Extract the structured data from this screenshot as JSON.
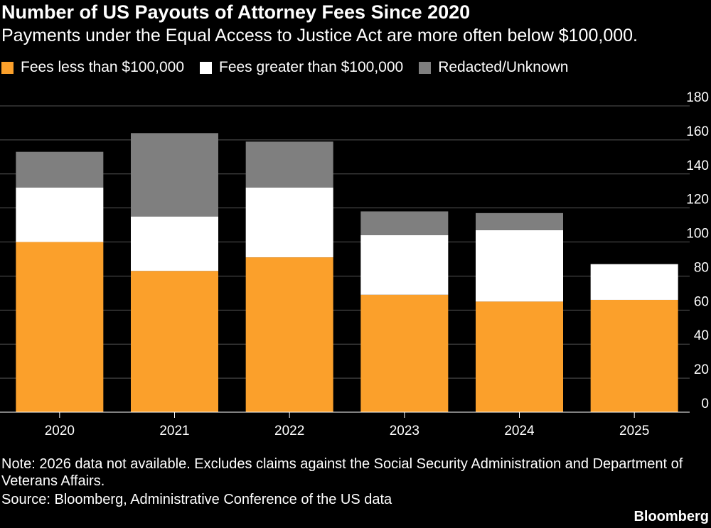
{
  "title": "Number of US Payouts of Attorney Fees Since 2020",
  "subtitle": "Payments under the Equal Access to Justice Act are more often below $100,000.",
  "note": "Note: 2026 data not available. Excludes claims against the Social Security Administration and Department of Veterans Affairs.",
  "source": "Source: Bloomberg, Administrative Conference of the US data",
  "brand": "Bloomberg",
  "colors": {
    "background": "#000000",
    "gridline": "#555555",
    "text": "#ffffff"
  },
  "legend": [
    {
      "label": "Fees less than $100,000",
      "color": "#FBA02B"
    },
    {
      "label": "Fees greater than $100,000",
      "color": "#FFFFFF"
    },
    {
      "label": "Redacted/Unknown",
      "color": "#7F7F7F"
    }
  ],
  "chart_data": {
    "type": "bar",
    "stacked": true,
    "categories": [
      "2020",
      "2021",
      "2022",
      "2023",
      "2024",
      "2025"
    ],
    "series": [
      {
        "name": "Fees less than $100,000",
        "color": "#FBA02B",
        "values": [
          100,
          83,
          91,
          69,
          65,
          66
        ]
      },
      {
        "name": "Fees greater than $100,000",
        "color": "#FFFFFF",
        "values": [
          32,
          32,
          41,
          35,
          42,
          21
        ]
      },
      {
        "name": "Redacted/Unknown",
        "color": "#7F7F7F",
        "values": [
          21,
          49,
          27,
          14,
          10,
          0
        ]
      }
    ],
    "ylim": [
      0,
      180
    ],
    "yticks": [
      0,
      20,
      40,
      60,
      80,
      100,
      120,
      140,
      160,
      180
    ],
    "y_axis_side": "right",
    "grid": true,
    "legend_position": "top-left"
  }
}
